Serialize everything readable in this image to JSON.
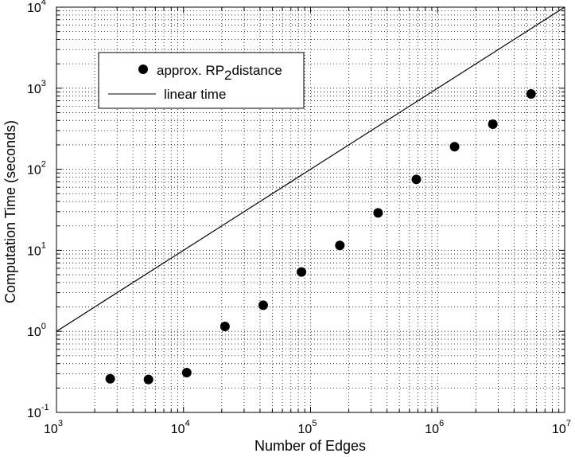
{
  "chart_data": {
    "type": "scatter",
    "xscale": "log",
    "yscale": "log",
    "xlim": [
      1000,
      10000000
    ],
    "ylim": [
      0.1,
      10000
    ],
    "grid": true,
    "legend_position": "top-left",
    "xlabel": "Number of Edges",
    "ylabel": "Computation Time (seconds)",
    "x_ticks": [
      {
        "base": "10",
        "exp": "3",
        "value": 1000
      },
      {
        "base": "10",
        "exp": "4",
        "value": 10000
      },
      {
        "base": "10",
        "exp": "5",
        "value": 100000
      },
      {
        "base": "10",
        "exp": "6",
        "value": 1000000
      },
      {
        "base": "10",
        "exp": "7",
        "value": 10000000
      }
    ],
    "y_ticks": [
      {
        "base": "10",
        "exp": "-1",
        "value": 0.1
      },
      {
        "base": "10",
        "exp": "0",
        "value": 1
      },
      {
        "base": "10",
        "exp": "1",
        "value": 10
      },
      {
        "base": "10",
        "exp": "2",
        "value": 100
      },
      {
        "base": "10",
        "exp": "3",
        "value": 1000
      },
      {
        "base": "10",
        "exp": "4",
        "value": 10000
      }
    ],
    "series": [
      {
        "name_main": "approx. RP",
        "name_sub": "2",
        "name_tail": "distance",
        "kind": "scatter",
        "color": "#000000",
        "points": [
          {
            "x": 2650,
            "y": 0.26
          },
          {
            "x": 5300,
            "y": 0.255
          },
          {
            "x": 10600,
            "y": 0.31
          },
          {
            "x": 21200,
            "y": 1.15
          },
          {
            "x": 42400,
            "y": 2.1
          },
          {
            "x": 84800,
            "y": 5.4
          },
          {
            "x": 170000,
            "y": 11.5
          },
          {
            "x": 340000,
            "y": 29
          },
          {
            "x": 680000,
            "y": 75
          },
          {
            "x": 1360000,
            "y": 190
          },
          {
            "x": 2720000,
            "y": 360
          },
          {
            "x": 5440000,
            "y": 850
          }
        ]
      },
      {
        "name": "linear time",
        "kind": "line",
        "color": "#000000",
        "points": [
          {
            "x": 1000,
            "y": 1
          },
          {
            "x": 10000000,
            "y": 10000
          }
        ]
      }
    ]
  }
}
